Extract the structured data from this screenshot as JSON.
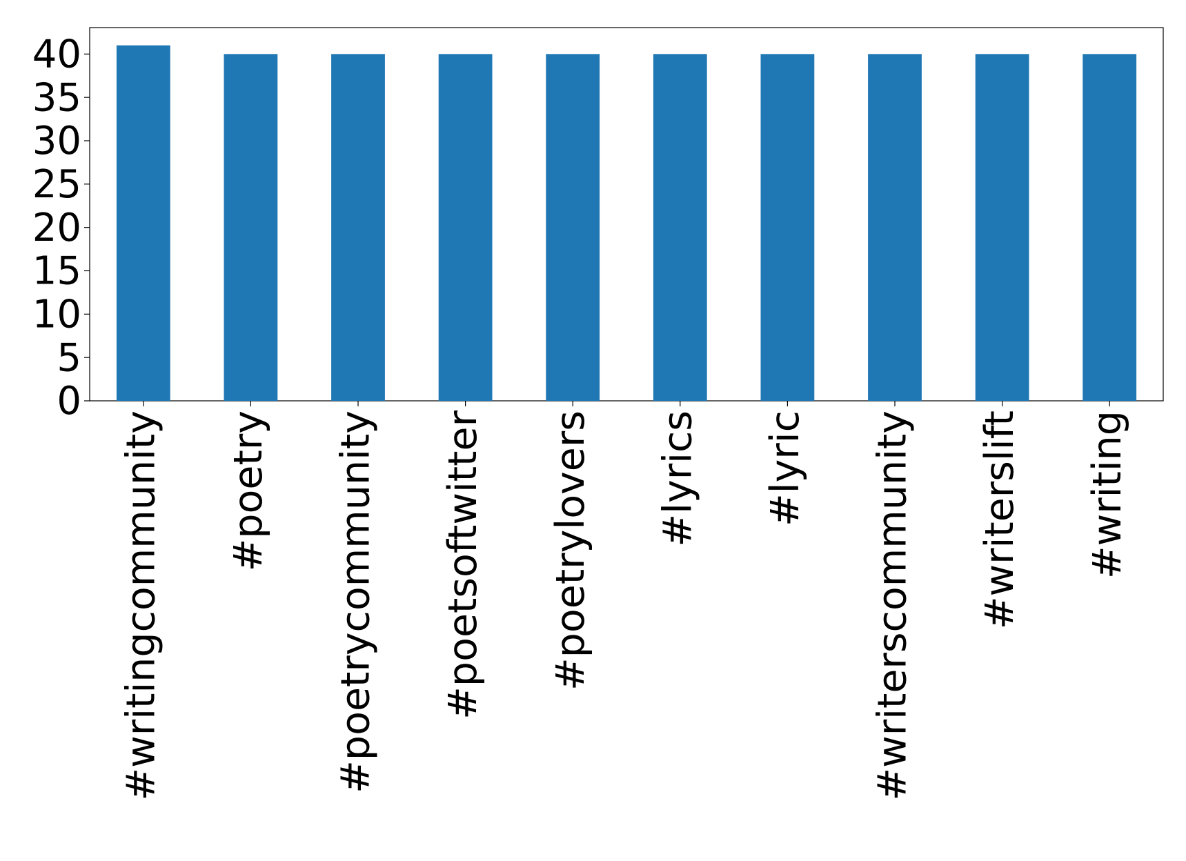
{
  "chart_data": {
    "type": "bar",
    "categories": [
      "#writingcommunity",
      "#poetry",
      "#poetrycommunity",
      "#poetsoftwitter",
      "#poetrylovers",
      "#lyrics",
      "#lyric",
      "#writerscommunity",
      "#writerslift",
      "#writing"
    ],
    "values": [
      41,
      40,
      40,
      40,
      40,
      40,
      40,
      40,
      40,
      40
    ],
    "color": "#1f77b4",
    "ylim": [
      0,
      43.05
    ],
    "yticks": [
      0,
      5,
      10,
      15,
      20,
      25,
      30,
      35,
      40
    ],
    "grid": false
  }
}
